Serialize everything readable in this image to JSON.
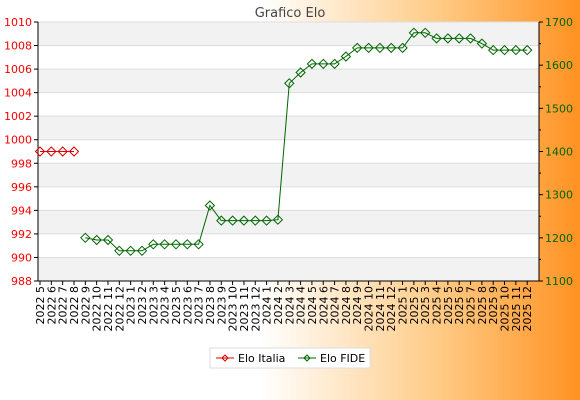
{
  "chart_data": {
    "type": "line",
    "title": "Grafico Elo",
    "categories": [
      "2022 5",
      "2022 6",
      "2022 7",
      "2022 8",
      "2022 9",
      "2022 10",
      "2022 11",
      "2022 12",
      "2023 1",
      "2023 2",
      "2023 3",
      "2023 4",
      "2023 5",
      "2023 6",
      "2023 7",
      "2023 8",
      "2023 9",
      "2023 10",
      "2023 11",
      "2023 12",
      "2024 1",
      "2024 2",
      "2024 3",
      "2024 4",
      "2024 5",
      "2024 6",
      "2024 7",
      "2024 8",
      "2024 9",
      "2024 10",
      "2024 11",
      "2024 12",
      "2025 1",
      "2025 2",
      "2025 3",
      "2025 4",
      "2025 5",
      "2025 6",
      "2025 7",
      "2025 8",
      "2025 9",
      "2025 10",
      "2025 11",
      "2025 12"
    ],
    "y_left": {
      "min": 988,
      "max": 1010,
      "ticks": [
        988,
        990,
        992,
        994,
        996,
        998,
        1000,
        1002,
        1004,
        1006,
        1008,
        1010
      ],
      "color": "#ff0000"
    },
    "y_right": {
      "min": 1100,
      "max": 1700,
      "ticks": [
        1100,
        1200,
        1300,
        1400,
        1500,
        1600,
        1700
      ],
      "color": "#006600"
    },
    "series": [
      {
        "name": "Elo Italia",
        "axis": "left",
        "color": "#dd0000",
        "values": [
          999,
          999,
          999,
          999,
          null,
          null,
          null,
          null,
          null,
          null,
          null,
          null,
          null,
          null,
          null,
          null,
          null,
          null,
          null,
          null,
          null,
          null,
          null,
          null,
          null,
          null,
          null,
          null,
          null,
          null,
          null,
          null,
          null,
          null,
          null,
          null,
          null,
          null,
          null,
          null,
          null,
          null,
          null,
          null
        ]
      },
      {
        "name": "Elo FIDE",
        "axis": "right",
        "color": "#006600",
        "values": [
          null,
          null,
          null,
          null,
          1200,
          1195,
          1195,
          1170,
          1170,
          1170,
          1185,
          1185,
          1185,
          1185,
          1185,
          1275,
          1240,
          1240,
          1240,
          1240,
          1240,
          1242,
          1558,
          1583,
          1603,
          1603,
          1603,
          1620,
          1640,
          1640,
          1640,
          1640,
          1640,
          1675,
          1675,
          1662,
          1662,
          1662,
          1662,
          1650,
          1635,
          1635,
          1635,
          1635
        ]
      }
    ],
    "grid": true,
    "legend_position": "bottom"
  }
}
